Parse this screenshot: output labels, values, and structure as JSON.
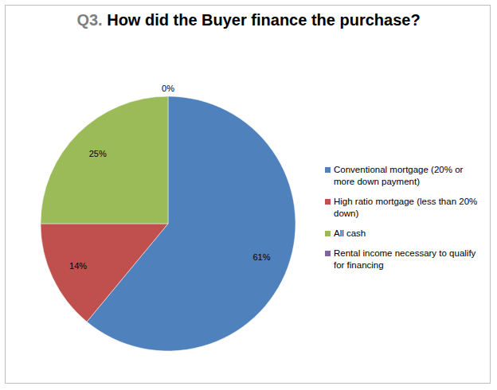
{
  "chart_data": {
    "type": "pie",
    "title": "Q3. How did the Buyer finance the purchase?",
    "categories": [
      "Conventional mortgage (20% or more down payment)",
      "High ratio mortgage (less than 20% down)",
      "All cash",
      "Rental income necessary to qualify for financing"
    ],
    "values": [
      61,
      14,
      25,
      0
    ],
    "value_labels": [
      "61%",
      "14%",
      "25%",
      "0%"
    ],
    "colors": [
      "#4F81BD",
      "#C0504D",
      "#9BBB59",
      "#8064A2"
    ],
    "legend": "right",
    "data_labels": true
  }
}
